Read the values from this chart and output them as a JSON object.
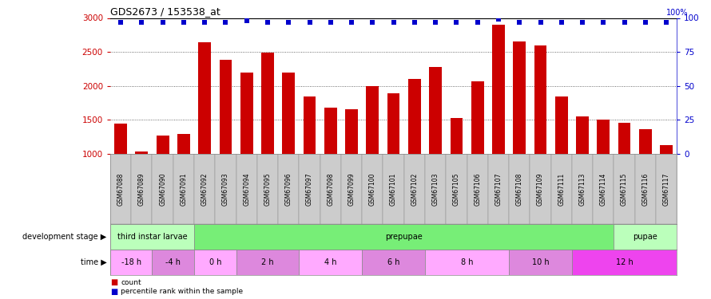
{
  "title": "GDS2673 / 153538_at",
  "samples": [
    "GSM67088",
    "GSM67089",
    "GSM67090",
    "GSM67091",
    "GSM67092",
    "GSM67093",
    "GSM67094",
    "GSM67095",
    "GSM67096",
    "GSM67097",
    "GSM67098",
    "GSM67099",
    "GSM67100",
    "GSM67101",
    "GSM67102",
    "GSM67103",
    "GSM67105",
    "GSM67106",
    "GSM67107",
    "GSM67108",
    "GSM67109",
    "GSM67111",
    "GSM67113",
    "GSM67114",
    "GSM67115",
    "GSM67116",
    "GSM67117"
  ],
  "counts": [
    1450,
    1040,
    1270,
    1300,
    2640,
    2380,
    2200,
    2490,
    2200,
    1840,
    1680,
    1660,
    2000,
    1890,
    2100,
    2280,
    1530,
    2070,
    2900,
    2660,
    2600,
    1850,
    1550,
    1500,
    1460,
    1360,
    1130
  ],
  "percentile_ranks": [
    97,
    97,
    97,
    97,
    97,
    97,
    98,
    97,
    97,
    97,
    97,
    97,
    97,
    97,
    97,
    97,
    97,
    97,
    99,
    97,
    97,
    97,
    97,
    97,
    97,
    97,
    97
  ],
  "bar_color": "#cc0000",
  "percentile_color": "#0000cc",
  "ylim_left": [
    1000,
    3000
  ],
  "ylim_right": [
    0,
    100
  ],
  "yticks_left": [
    1000,
    1500,
    2000,
    2500,
    3000
  ],
  "yticks_right": [
    0,
    25,
    50,
    75,
    100
  ],
  "development_stages": [
    {
      "label": "third instar larvae",
      "start": 0,
      "end": 4,
      "color": "#bbffbb"
    },
    {
      "label": "prepupae",
      "start": 4,
      "end": 24,
      "color": "#77ee77"
    },
    {
      "label": "pupae",
      "start": 24,
      "end": 27,
      "color": "#bbffbb"
    }
  ],
  "time_groups": [
    {
      "label": "-18 h",
      "start": 0,
      "end": 2
    },
    {
      "label": "-4 h",
      "start": 2,
      "end": 4
    },
    {
      "label": "0 h",
      "start": 4,
      "end": 6
    },
    {
      "label": "2 h",
      "start": 6,
      "end": 9
    },
    {
      "label": "4 h",
      "start": 9,
      "end": 12
    },
    {
      "label": "6 h",
      "start": 12,
      "end": 15
    },
    {
      "label": "8 h",
      "start": 15,
      "end": 19
    },
    {
      "label": "10 h",
      "start": 19,
      "end": 22
    },
    {
      "label": "12 h",
      "start": 22,
      "end": 27
    }
  ],
  "time_colors": [
    "#ffaaff",
    "#dd88dd",
    "#ffaaff",
    "#dd88dd",
    "#ffaaff",
    "#dd88dd",
    "#ffaaff",
    "#dd88dd",
    "#ee44ee"
  ],
  "bg_color": "#ffffff",
  "bar_width": 0.6,
  "label_bg": "#cccccc"
}
